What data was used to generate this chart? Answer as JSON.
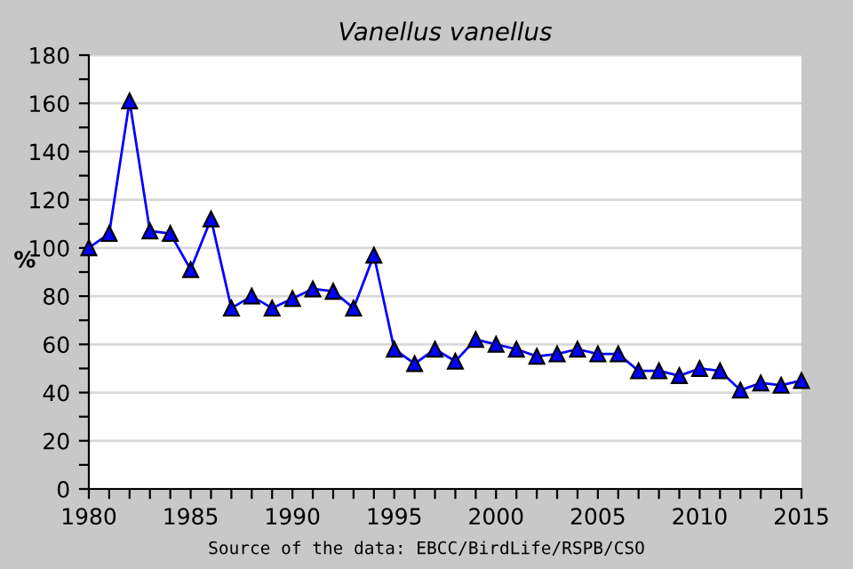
{
  "chart_data": {
    "type": "line",
    "title": "Vanellus vanellus",
    "ylabel": "%",
    "x": [
      1980,
      1981,
      1982,
      1983,
      1984,
      1985,
      1986,
      1987,
      1988,
      1989,
      1990,
      1991,
      1992,
      1993,
      1994,
      1995,
      1996,
      1997,
      1998,
      1999,
      2000,
      2001,
      2002,
      2003,
      2004,
      2005,
      2006,
      2007,
      2008,
      2009,
      2010,
      2011,
      2012,
      2013,
      2014,
      2015
    ],
    "series": [
      {
        "color": "#0000ff",
        "values": [
          100,
          106,
          161,
          107,
          106,
          91,
          112,
          75,
          80,
          75,
          79,
          83,
          82,
          75,
          97,
          58,
          52,
          58,
          53,
          62,
          60,
          58,
          55,
          56,
          58,
          56,
          56,
          49,
          49,
          47,
          50,
          49,
          41,
          44,
          43,
          45
        ]
      }
    ],
    "xlim": [
      1980,
      2015
    ],
    "xticks": [
      1980,
      {
        "value": 1981,
        "label": null
      },
      {
        "value": 1982,
        "label": null
      },
      {
        "value": 1983,
        "label": null
      },
      {
        "value": 1984,
        "label": null
      },
      1985,
      {
        "value": 1986,
        "label": null
      },
      {
        "value": 1987,
        "label": null
      },
      {
        "value": 1988,
        "label": null
      },
      {
        "value": 1989,
        "label": null
      },
      1990,
      {
        "value": 1991,
        "label": null
      },
      {
        "value": 1992,
        "label": null
      },
      {
        "value": 1993,
        "label": null
      },
      {
        "value": 1994,
        "label": null
      },
      1995,
      {
        "value": 1996,
        "label": null
      },
      {
        "value": 1997,
        "label": null
      },
      {
        "value": 1998,
        "label": null
      },
      {
        "value": 1999,
        "label": null
      },
      2000,
      {
        "value": 2001,
        "label": null
      },
      {
        "value": 2002,
        "label": null
      },
      {
        "value": 2003,
        "label": null
      },
      {
        "value": 2004,
        "label": null
      },
      2005,
      {
        "value": 2006,
        "label": null
      },
      {
        "value": 2007,
        "label": null
      },
      {
        "value": 2008,
        "label": null
      },
      {
        "value": 2009,
        "label": null
      },
      2010,
      {
        "value": 2011,
        "label": null
      },
      {
        "value": 2012,
        "label": null
      },
      {
        "value": 2013,
        "label": null
      },
      {
        "value": 2014,
        "label": null
      },
      2015
    ],
    "ylim": [
      0,
      180
    ],
    "yticks": [
      0,
      {
        "value": 10,
        "label": null
      },
      20,
      {
        "value": 30,
        "label": null
      },
      40,
      {
        "value": 50,
        "label": null
      },
      60,
      {
        "value": 70,
        "label": null
      },
      80,
      {
        "value": 90,
        "label": null
      },
      100,
      {
        "value": 110,
        "label": null
      },
      120,
      {
        "value": 130,
        "label": null
      },
      140,
      {
        "value": 150,
        "label": null
      },
      160,
      {
        "value": 170,
        "label": null
      },
      180
    ],
    "grid": "y",
    "marker": "triangle",
    "line_style": "solid",
    "annotations": [
      "Source of the data: EBCC/BirdLife/RSPB/CSO"
    ]
  }
}
